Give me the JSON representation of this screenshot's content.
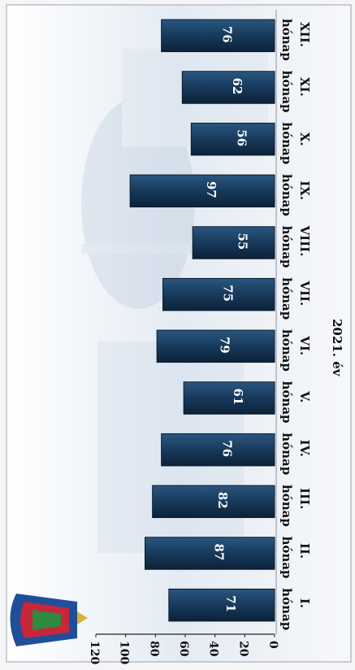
{
  "chart_data": {
    "type": "bar",
    "orientation": "rotated-90",
    "categories": [
      "I. hónap",
      "II. hónap",
      "III. hónap",
      "IV. hónap",
      "V. hónap",
      "VI. hónap",
      "VII. hónap",
      "VIII. hónap",
      "IX. hónap",
      "X. hónap",
      "XI. hónap",
      "XII. hónap"
    ],
    "category_lines": [
      [
        "I.",
        "hónap"
      ],
      [
        "II.",
        "hónap"
      ],
      [
        "III.",
        "hónap"
      ],
      [
        "IV.",
        "hónap"
      ],
      [
        "V.",
        "hónap"
      ],
      [
        "VI.",
        "hónap"
      ],
      [
        "VII.",
        "hónap"
      ],
      [
        "VIII.",
        "hónap"
      ],
      [
        "IX.",
        "hónap"
      ],
      [
        "X.",
        "hónap"
      ],
      [
        "XI.",
        "hónap"
      ],
      [
        "XII.",
        "hónap"
      ]
    ],
    "values": [
      71,
      87,
      82,
      76,
      61,
      79,
      75,
      55,
      97,
      56,
      62,
      76
    ],
    "xlabel": "2021. év",
    "ylabel": "",
    "ylim": [
      0,
      120
    ],
    "yticks": [
      0,
      20,
      40,
      60,
      80,
      100,
      120
    ],
    "grid": false,
    "legend": "none",
    "colors": {
      "bar": "#16324f",
      "bar_edge": "#0a1a2c",
      "bar_label": "#ffffff",
      "axis": "#222222",
      "background": "#e9eef4"
    }
  },
  "logo": {
    "name": "police-shield-logo"
  }
}
